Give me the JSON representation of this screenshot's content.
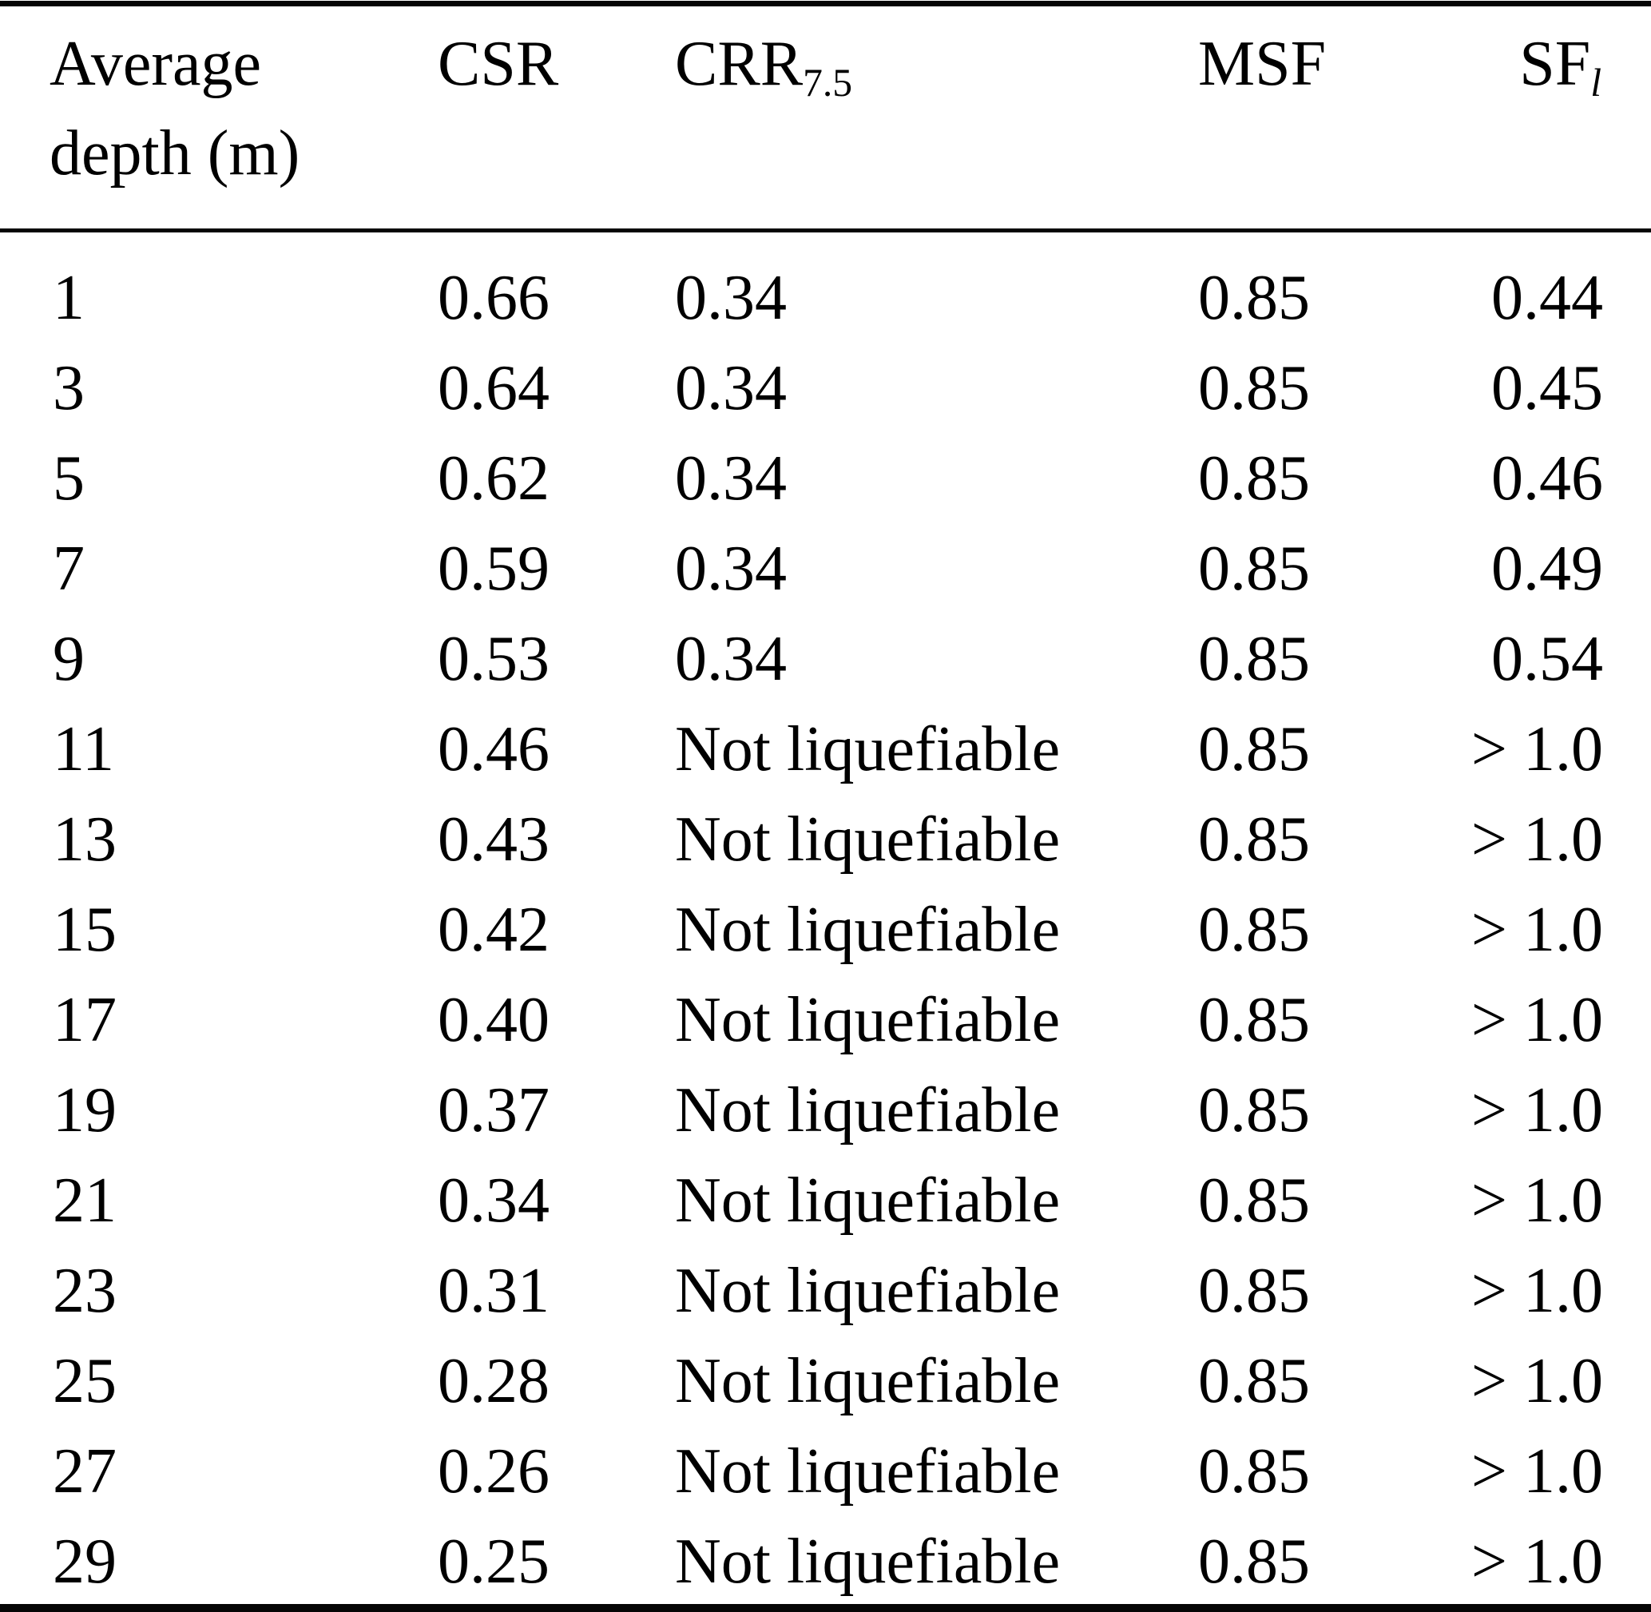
{
  "colors": {
    "text": "#000000",
    "background": "#ffffff",
    "rule": "#050505"
  },
  "table": {
    "columns": [
      {
        "label": "Average depth (m)",
        "sub": ""
      },
      {
        "label": "CSR",
        "sub": ""
      },
      {
        "label": "CRR",
        "sub": "7.5"
      },
      {
        "label": "MSF",
        "sub": ""
      },
      {
        "label": "SF",
        "sub": "l"
      }
    ],
    "rows": [
      {
        "depth": "1",
        "csr": "0.66",
        "crr": "0.34",
        "msf": "0.85",
        "sf": "0.44"
      },
      {
        "depth": "3",
        "csr": "0.64",
        "crr": "0.34",
        "msf": "0.85",
        "sf": "0.45"
      },
      {
        "depth": "5",
        "csr": "0.62",
        "crr": "0.34",
        "msf": "0.85",
        "sf": "0.46"
      },
      {
        "depth": "7",
        "csr": "0.59",
        "crr": "0.34",
        "msf": "0.85",
        "sf": "0.49"
      },
      {
        "depth": "9",
        "csr": "0.53",
        "crr": "0.34",
        "msf": "0.85",
        "sf": "0.54"
      },
      {
        "depth": "11",
        "csr": "0.46",
        "crr": "Not liquefiable",
        "msf": "0.85",
        "sf": "> 1.0"
      },
      {
        "depth": "13",
        "csr": "0.43",
        "crr": "Not liquefiable",
        "msf": "0.85",
        "sf": "> 1.0"
      },
      {
        "depth": "15",
        "csr": "0.42",
        "crr": "Not liquefiable",
        "msf": "0.85",
        "sf": "> 1.0"
      },
      {
        "depth": "17",
        "csr": "0.40",
        "crr": "Not liquefiable",
        "msf": "0.85",
        "sf": "> 1.0"
      },
      {
        "depth": "19",
        "csr": "0.37",
        "crr": "Not liquefiable",
        "msf": "0.85",
        "sf": "> 1.0"
      },
      {
        "depth": "21",
        "csr": "0.34",
        "crr": "Not liquefiable",
        "msf": "0.85",
        "sf": "> 1.0"
      },
      {
        "depth": "23",
        "csr": "0.31",
        "crr": "Not liquefiable",
        "msf": "0.85",
        "sf": "> 1.0"
      },
      {
        "depth": "25",
        "csr": "0.28",
        "crr": "Not liquefiable",
        "msf": "0.85",
        "sf": "> 1.0"
      },
      {
        "depth": "27",
        "csr": "0.26",
        "crr": "Not liquefiable",
        "msf": "0.85",
        "sf": "> 1.0"
      },
      {
        "depth": "29",
        "csr": "0.25",
        "crr": "Not liquefiable",
        "msf": "0.85",
        "sf": "> 1.0"
      }
    ]
  }
}
